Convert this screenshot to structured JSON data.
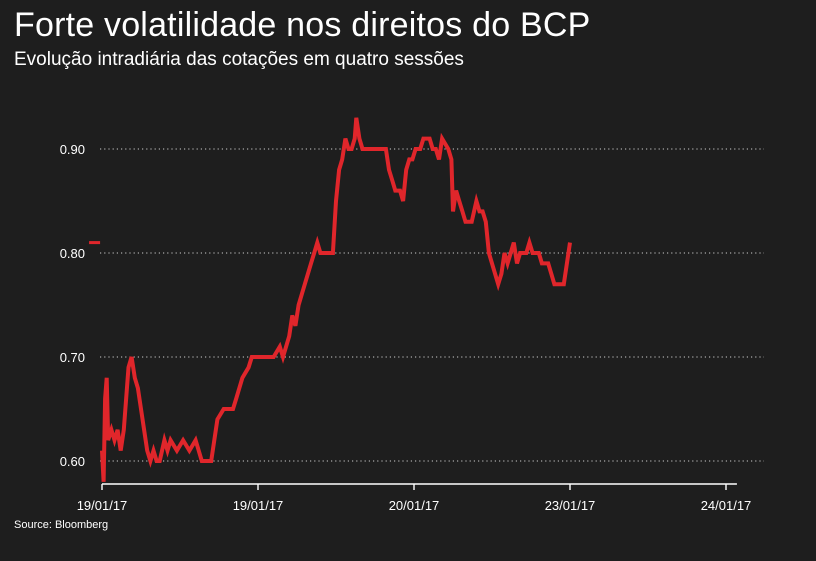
{
  "title": "Forte volatilidade nos direitos do BCP",
  "subtitle": "Evolução intradiária das cotações em quatro sessões",
  "source": "Source: Bloomberg",
  "colors": {
    "background": "#1e1e1e",
    "line": "#e0262b",
    "grid": "#cccccc",
    "text": "#ffffff"
  },
  "chart_data": {
    "type": "line",
    "title": "Forte volatilidade nos direitos do BCP",
    "subtitle": "Evolução intradiária das cotações em quatro sessões",
    "xlabel": "",
    "ylabel": "",
    "ylim": [
      0.58,
      0.93
    ],
    "yticks": [
      {
        "value": 0.6,
        "label": "0.60"
      },
      {
        "value": 0.7,
        "label": "0.70"
      },
      {
        "value": 0.8,
        "label": "0.80"
      },
      {
        "value": 0.9,
        "label": "0.90"
      }
    ],
    "grid": "horizontal dotted",
    "xticks": [
      {
        "t": 0,
        "label": "19/01/17"
      },
      {
        "t": 1,
        "label": "19/01/17"
      },
      {
        "t": 2,
        "label": "20/01/17"
      },
      {
        "t": 3,
        "label": "23/01/17"
      },
      {
        "t": 4,
        "label": "24/01/17"
      }
    ],
    "xlim": [
      0,
      4.07
    ],
    "marker": {
      "t": -0.07,
      "value": 0.81
    },
    "series": [
      {
        "values": [
          [
            0.0,
            0.61
          ],
          [
            0.01,
            0.58
          ],
          [
            0.02,
            0.66
          ],
          [
            0.03,
            0.68
          ],
          [
            0.04,
            0.62
          ],
          [
            0.06,
            0.63
          ],
          [
            0.08,
            0.62
          ],
          [
            0.1,
            0.63
          ],
          [
            0.12,
            0.61
          ],
          [
            0.14,
            0.63
          ],
          [
            0.17,
            0.69
          ],
          [
            0.19,
            0.7
          ],
          [
            0.21,
            0.68
          ],
          [
            0.23,
            0.67
          ],
          [
            0.25,
            0.65
          ],
          [
            0.27,
            0.63
          ],
          [
            0.29,
            0.61
          ],
          [
            0.31,
            0.6
          ],
          [
            0.33,
            0.61
          ],
          [
            0.35,
            0.6
          ],
          [
            0.37,
            0.6
          ],
          [
            0.4,
            0.62
          ],
          [
            0.42,
            0.61
          ],
          [
            0.44,
            0.62
          ],
          [
            0.48,
            0.61
          ],
          [
            0.52,
            0.62
          ],
          [
            0.56,
            0.61
          ],
          [
            0.6,
            0.62
          ],
          [
            0.62,
            0.61
          ],
          [
            0.64,
            0.6
          ],
          [
            0.7,
            0.6
          ],
          [
            0.72,
            0.62
          ],
          [
            0.74,
            0.64
          ],
          [
            0.78,
            0.65
          ],
          [
            0.84,
            0.65
          ],
          [
            0.86,
            0.66
          ],
          [
            0.88,
            0.67
          ],
          [
            0.9,
            0.68
          ],
          [
            0.94,
            0.69
          ],
          [
            0.96,
            0.7
          ],
          [
            1.1,
            0.7
          ],
          [
            1.14,
            0.71
          ],
          [
            1.16,
            0.7
          ],
          [
            1.2,
            0.72
          ],
          [
            1.22,
            0.74
          ],
          [
            1.24,
            0.73
          ],
          [
            1.26,
            0.75
          ],
          [
            1.28,
            0.76
          ],
          [
            1.3,
            0.77
          ],
          [
            1.32,
            0.78
          ],
          [
            1.34,
            0.79
          ],
          [
            1.36,
            0.8
          ],
          [
            1.38,
            0.81
          ],
          [
            1.4,
            0.8
          ],
          [
            1.48,
            0.8
          ],
          [
            1.5,
            0.85
          ],
          [
            1.52,
            0.88
          ],
          [
            1.54,
            0.89
          ],
          [
            1.56,
            0.91
          ],
          [
            1.58,
            0.9
          ],
          [
            1.6,
            0.9
          ],
          [
            1.62,
            0.91
          ],
          [
            1.63,
            0.93
          ],
          [
            1.65,
            0.91
          ],
          [
            1.67,
            0.9
          ],
          [
            1.75,
            0.9
          ],
          [
            1.82,
            0.9
          ],
          [
            1.84,
            0.88
          ],
          [
            1.86,
            0.87
          ],
          [
            1.88,
            0.86
          ],
          [
            1.91,
            0.86
          ],
          [
            1.93,
            0.85
          ],
          [
            1.95,
            0.88
          ],
          [
            1.97,
            0.89
          ],
          [
            1.99,
            0.89
          ],
          [
            2.01,
            0.9
          ],
          [
            2.04,
            0.9
          ],
          [
            2.06,
            0.91
          ],
          [
            2.1,
            0.91
          ],
          [
            2.12,
            0.9
          ],
          [
            2.14,
            0.9
          ],
          [
            2.16,
            0.89
          ],
          [
            2.18,
            0.91
          ],
          [
            2.22,
            0.9
          ],
          [
            2.24,
            0.89
          ],
          [
            2.25,
            0.84
          ],
          [
            2.27,
            0.86
          ],
          [
            2.29,
            0.85
          ],
          [
            2.31,
            0.84
          ],
          [
            2.33,
            0.83
          ],
          [
            2.37,
            0.83
          ],
          [
            2.4,
            0.85
          ],
          [
            2.42,
            0.84
          ],
          [
            2.44,
            0.84
          ],
          [
            2.46,
            0.83
          ],
          [
            2.48,
            0.8
          ],
          [
            2.5,
            0.79
          ],
          [
            2.52,
            0.78
          ],
          [
            2.54,
            0.77
          ],
          [
            2.56,
            0.78
          ],
          [
            2.58,
            0.8
          ],
          [
            2.6,
            0.79
          ],
          [
            2.62,
            0.8
          ],
          [
            2.64,
            0.81
          ],
          [
            2.66,
            0.79
          ],
          [
            2.68,
            0.8
          ],
          [
            2.72,
            0.8
          ],
          [
            2.74,
            0.81
          ],
          [
            2.76,
            0.8
          ],
          [
            2.8,
            0.8
          ],
          [
            2.82,
            0.79
          ],
          [
            2.86,
            0.79
          ],
          [
            2.88,
            0.78
          ],
          [
            2.9,
            0.77
          ],
          [
            2.96,
            0.77
          ],
          [
            2.98,
            0.79
          ],
          [
            3.0,
            0.81
          ]
        ]
      }
    ]
  }
}
